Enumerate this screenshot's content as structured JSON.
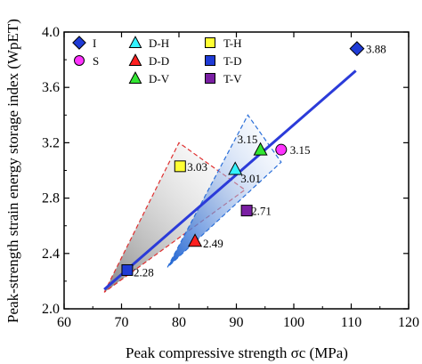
{
  "chart_data": {
    "type": "scatter",
    "xlabel": "Peak compressive strength σc (MPa)",
    "ylabel": "Peak-strength strain energy storage index (WpET)",
    "xlim": [
      60,
      120
    ],
    "ylim": [
      2.0,
      4.0
    ],
    "xticks": [
      "60",
      "70",
      "80",
      "90",
      "100",
      "110",
      "120"
    ],
    "yticks": [
      "2.0",
      "2.4",
      "2.8",
      "3.2",
      "3.6",
      "4.0"
    ],
    "grid": false,
    "legend_position": "top-left",
    "series": [
      {
        "name": "I",
        "marker": "diamond",
        "color": "#1f3bd6",
        "x": 111.0,
        "y": 3.88,
        "label": "3.88"
      },
      {
        "name": "S",
        "marker": "circle",
        "color": "#ff33ff",
        "x": 97.8,
        "y": 3.15,
        "label": "3.15"
      },
      {
        "name": "D-H",
        "marker": "triangle",
        "color": "#33f2ff",
        "x": 89.8,
        "y": 3.01,
        "label": "3.01"
      },
      {
        "name": "D-D",
        "marker": "triangle",
        "color": "#ff2020",
        "x": 82.8,
        "y": 2.49,
        "label": "2.49"
      },
      {
        "name": "D-V",
        "marker": "triangle",
        "color": "#33e633",
        "x": 94.2,
        "y": 3.15,
        "label": "3.15"
      },
      {
        "name": "T-H",
        "marker": "square",
        "color": "#ffff33",
        "x": 80.2,
        "y": 3.03,
        "label": "3.03"
      },
      {
        "name": "T-D",
        "marker": "square",
        "color": "#1f3bd6",
        "x": 71.0,
        "y": 2.28,
        "label": "2.28"
      },
      {
        "name": "T-V",
        "marker": "square",
        "color": "#7a1fa3",
        "x": 91.8,
        "y": 2.71,
        "label": "2.71"
      }
    ],
    "fit_line": {
      "x": [
        67.0,
        110.8
      ],
      "y": [
        2.14,
        3.72
      ],
      "color": "#2b3bd9"
    },
    "regions": [
      {
        "points": [
          [
            67.0,
            2.12
          ],
          [
            80.0,
            3.2
          ],
          [
            91.5,
            2.86
          ]
        ],
        "stroke": "#e03030",
        "fill_from": "#7f7f7f",
        "fill_to": "#ffffff"
      },
      {
        "points": [
          [
            78.0,
            2.3
          ],
          [
            92.0,
            3.4
          ],
          [
            97.8,
            3.06
          ]
        ],
        "stroke": "#2b6fd9",
        "fill_from": "#1a5fcf",
        "fill_to": "#ffffff"
      }
    ]
  },
  "colors": {
    "axis": "#000000",
    "fit_line": "#2b3bd9",
    "region_red": "#e03030",
    "region_blue": "#2b6fd9"
  }
}
